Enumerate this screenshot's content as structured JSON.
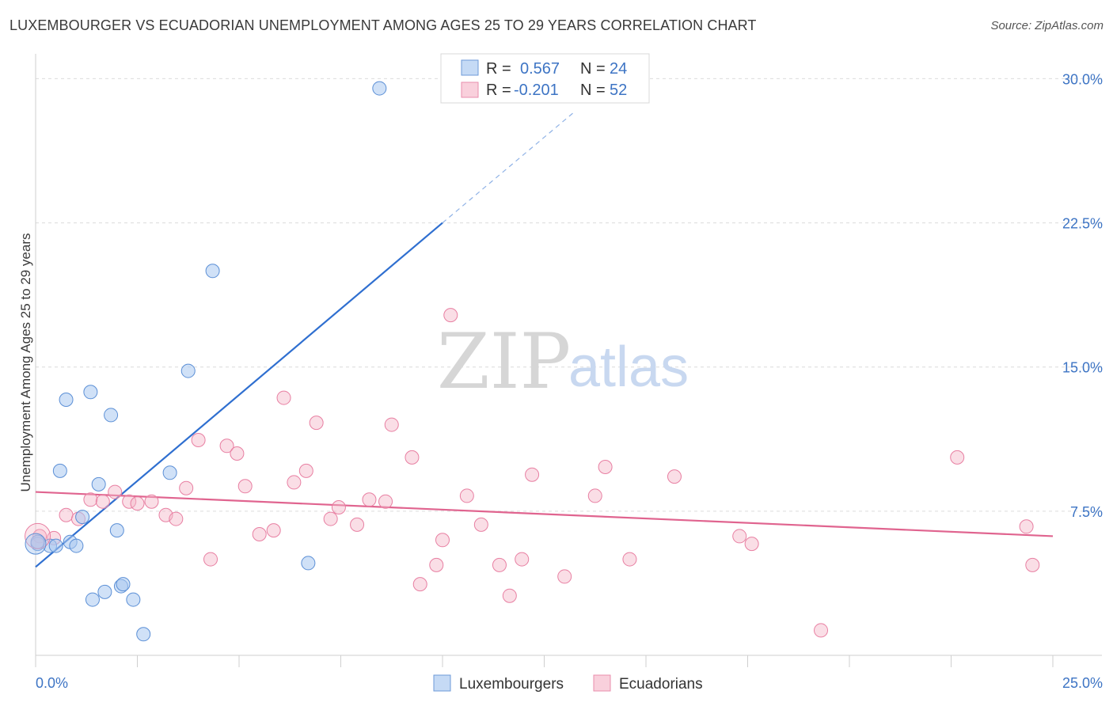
{
  "header": {
    "title": "LUXEMBOURGER VS ECUADORIAN UNEMPLOYMENT AMONG AGES 25 TO 29 YEARS CORRELATION CHART",
    "source": "Source: ZipAtlas.com"
  },
  "watermark": {
    "zip": "ZIP",
    "atlas": "atlas"
  },
  "legend": {
    "rows": [
      {
        "r_label": "R =",
        "r_value": "0.567",
        "n_label": "N =",
        "n_value": "24",
        "color": "#a9c8f0"
      },
      {
        "r_label": "R =",
        "r_value": "-0.201",
        "n_label": "N =",
        "n_value": "52",
        "color": "#f5b6c8"
      }
    ]
  },
  "bottom_legend": [
    {
      "label": "Luxembourgers",
      "color": "#a9c8f0"
    },
    {
      "label": "Ecuadorians",
      "color": "#f5b6c8"
    }
  ],
  "chart_data": {
    "type": "scatter",
    "title": "LUXEMBOURGER VS ECUADORIAN UNEMPLOYMENT AMONG AGES 25 TO 29 YEARS CORRELATION CHART",
    "xlabel": "",
    "ylabel": "Unemployment Among Ages 25 to 29 years",
    "xlim": [
      0,
      25
    ],
    "ylim": [
      0,
      30.8
    ],
    "x_tick_labels": [
      {
        "value": 0,
        "label": "0.0%"
      },
      {
        "value": 25,
        "label": "25.0%"
      }
    ],
    "y_tick_labels": [
      {
        "value": 7.5,
        "label": "7.5%"
      },
      {
        "value": 15,
        "label": "15.0%"
      },
      {
        "value": 22.5,
        "label": "22.5%"
      },
      {
        "value": 30,
        "label": "30.0%"
      }
    ],
    "grid": true,
    "series": [
      {
        "name": "Luxembourgers",
        "color": "#a9c8f0",
        "stroke": "#5b8fd6",
        "points": [
          [
            0.05,
            5.8
          ],
          [
            0.35,
            5.7
          ],
          [
            0.5,
            5.7
          ],
          [
            0.85,
            5.9
          ],
          [
            1.0,
            5.7
          ],
          [
            1.15,
            7.2
          ],
          [
            0.75,
            13.3
          ],
          [
            0.6,
            9.6
          ],
          [
            1.35,
            13.7
          ],
          [
            1.55,
            8.9
          ],
          [
            1.85,
            12.5
          ],
          [
            2.0,
            6.5
          ],
          [
            2.1,
            3.6
          ],
          [
            2.15,
            3.7
          ],
          [
            1.7,
            3.3
          ],
          [
            1.4,
            2.9
          ],
          [
            2.4,
            2.9
          ],
          [
            2.65,
            1.1
          ],
          [
            3.3,
            9.5
          ],
          [
            3.75,
            14.8
          ],
          [
            4.35,
            20.0
          ],
          [
            6.7,
            4.8
          ],
          [
            8.45,
            29.5
          ],
          [
            0.05,
            5.9
          ]
        ],
        "trend": {
          "x_start": 0.0,
          "x_end": 10.0,
          "y_start": 4.6,
          "y_end": 22.5,
          "dash_x_end": 13.2,
          "dash_y_end": 28.2
        }
      },
      {
        "name": "Ecuadorians",
        "color": "#f5b6c8",
        "stroke": "#e87fa2",
        "points": [
          [
            0.1,
            6.2
          ],
          [
            0.45,
            6.1
          ],
          [
            0.75,
            7.3
          ],
          [
            1.05,
            7.1
          ],
          [
            1.35,
            8.1
          ],
          [
            1.65,
            8.0
          ],
          [
            1.95,
            8.5
          ],
          [
            2.3,
            8.0
          ],
          [
            2.5,
            7.9
          ],
          [
            2.85,
            8.0
          ],
          [
            3.2,
            7.3
          ],
          [
            3.45,
            7.1
          ],
          [
            3.7,
            8.7
          ],
          [
            4.0,
            11.2
          ],
          [
            4.3,
            5.0
          ],
          [
            4.7,
            10.9
          ],
          [
            4.95,
            10.5
          ],
          [
            5.15,
            8.8
          ],
          [
            5.5,
            6.3
          ],
          [
            5.85,
            6.5
          ],
          [
            6.1,
            13.4
          ],
          [
            6.35,
            9.0
          ],
          [
            6.65,
            9.6
          ],
          [
            6.9,
            12.1
          ],
          [
            7.25,
            7.1
          ],
          [
            7.45,
            7.7
          ],
          [
            7.9,
            6.8
          ],
          [
            8.2,
            8.1
          ],
          [
            8.6,
            8.0
          ],
          [
            8.75,
            12.0
          ],
          [
            9.25,
            10.3
          ],
          [
            9.45,
            3.7
          ],
          [
            9.85,
            4.7
          ],
          [
            10.0,
            6.0
          ],
          [
            10.2,
            17.7
          ],
          [
            10.6,
            8.3
          ],
          [
            10.95,
            6.8
          ],
          [
            11.4,
            4.7
          ],
          [
            11.65,
            3.1
          ],
          [
            11.95,
            5.0
          ],
          [
            12.2,
            9.4
          ],
          [
            13.0,
            4.1
          ],
          [
            13.75,
            8.3
          ],
          [
            14.0,
            9.8
          ],
          [
            14.6,
            5.0
          ],
          [
            15.7,
            9.3
          ],
          [
            17.3,
            6.2
          ],
          [
            17.6,
            5.8
          ],
          [
            19.3,
            1.3
          ],
          [
            22.65,
            10.3
          ],
          [
            24.35,
            6.7
          ],
          [
            24.5,
            4.7
          ]
        ],
        "trend": {
          "x_start": 0.0,
          "x_end": 25.0,
          "y_start": 8.5,
          "y_end": 6.2
        }
      }
    ]
  }
}
